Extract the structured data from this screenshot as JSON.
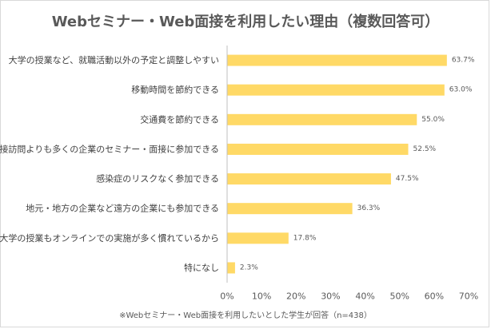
{
  "chart_data": {
    "type": "bar",
    "orientation": "horizontal",
    "title": "Webセミナー・Web面接を利用したい理由（複数回答可）",
    "categories": [
      "大学の授業など、就職活動以外の予定と調整しやすい",
      "移動時間を節約できる",
      "交通費を節約できる",
      "直接訪問よりも多くの企業のセミナー・面接に参加できる",
      "感染症のリスクなく参加できる",
      "地元・地方の企業など遠方の企業にも参加できる",
      "大学の授業もオンラインでの実施が多く慣れているから",
      "特になし"
    ],
    "values": [
      63.7,
      63.0,
      55.0,
      52.5,
      47.5,
      36.3,
      17.8,
      2.3
    ],
    "value_labels": [
      "63.7%",
      "63.0%",
      "55.0%",
      "52.5%",
      "47.5%",
      "36.3%",
      "17.8%",
      "2.3%"
    ],
    "xlim": [
      0,
      70
    ],
    "xticks": [
      "0%",
      "10%",
      "20%",
      "30%",
      "40%",
      "50%",
      "60%",
      "70%"
    ],
    "bar_color": "#ffd966",
    "grid": false,
    "footnote": "※Webセミナー・Web面接を利用したいとした学生が回答（n=438）"
  }
}
